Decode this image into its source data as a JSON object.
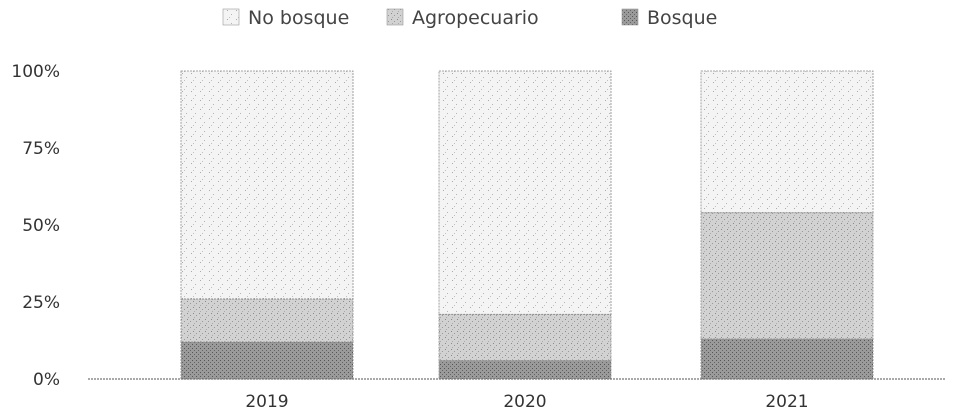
{
  "chart_data": {
    "type": "bar",
    "stacked": true,
    "percent": true,
    "categories": [
      "2019",
      "2020",
      "2021"
    ],
    "series": [
      {
        "name": "Bosque",
        "values": [
          12,
          6,
          13
        ],
        "color": "#8c8c8c"
      },
      {
        "name": "Agropecuario",
        "values": [
          14,
          15,
          41
        ],
        "color": "#c4c4c4"
      },
      {
        "name": "No bosque",
        "values": [
          74,
          79,
          46
        ],
        "color": "#ebebeb"
      }
    ],
    "legend_order": [
      "No bosque",
      "Agropecuario",
      "Bosque"
    ],
    "legend_position": "top-center",
    "y_ticks": [
      "0%",
      "25%",
      "50%",
      "75%",
      "100%"
    ],
    "ylim": [
      0,
      100
    ],
    "grid": false
  }
}
